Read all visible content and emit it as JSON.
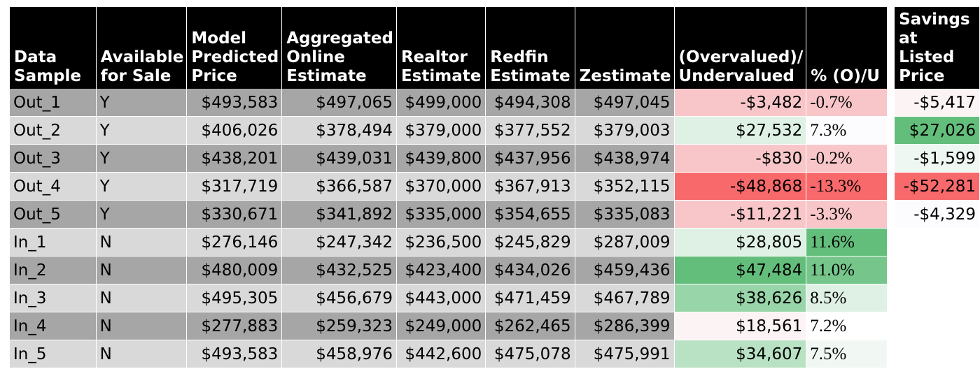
{
  "table": {
    "headers": {
      "data_sample": [
        "Data",
        "Sample"
      ],
      "available": [
        "Available",
        "for Sale"
      ],
      "model": [
        "Model",
        "Predicted",
        "Price"
      ],
      "aggregated": [
        "Aggregated",
        "Online",
        "Estimate"
      ],
      "realtor": [
        "Realtor",
        "Estimate"
      ],
      "redfin": [
        "Redfin",
        "Estimate"
      ],
      "zestimate": [
        "Zestimate"
      ],
      "over_under": [
        "(Overvalued)/",
        "Undervalued"
      ],
      "pct": [
        "% (O)/U"
      ],
      "savings": [
        "Savings",
        "at Listed",
        "Price"
      ]
    },
    "rows": [
      {
        "sample": "Out_1",
        "available": "Y",
        "model": "$493,583",
        "aggregated": "$497,065",
        "realtor": "$499,000",
        "redfin": "$494,308",
        "zestimate": "$497,045",
        "over_under": "-$3,482",
        "pct": "-0.7%",
        "savings": "-$5,417",
        "ou_color": "#f8c6c9",
        "pct_color": "#f8c6c9",
        "sav_color": "#fcf3f4"
      },
      {
        "sample": "Out_2",
        "available": "Y",
        "model": "$406,026",
        "aggregated": "$378,494",
        "realtor": "$379,000",
        "redfin": "$377,552",
        "zestimate": "$379,003",
        "over_under": "$27,532",
        "pct": "7.3%",
        "savings": "$27,026",
        "ou_color": "#def1e4",
        "pct_color": "#fcfcff",
        "sav_color": "#63be7b"
      },
      {
        "sample": "Out_3",
        "available": "Y",
        "model": "$438,201",
        "aggregated": "$439,031",
        "realtor": "$439,800",
        "redfin": "$437,956",
        "zestimate": "$438,974",
        "over_under": "-$830",
        "pct": "-0.2%",
        "savings": "-$1,599",
        "ou_color": "#f8c6c9",
        "pct_color": "#f8c6c9",
        "sav_color": "#eef7f1"
      },
      {
        "sample": "Out_4",
        "available": "Y",
        "model": "$317,719",
        "aggregated": "$366,587",
        "realtor": "$370,000",
        "redfin": "$367,913",
        "zestimate": "$352,115",
        "over_under": "-$48,868",
        "pct": "-13.3%",
        "savings": "-$52,281",
        "ou_color": "#f8696b",
        "pct_color": "#f8696b",
        "sav_color": "#f8696b"
      },
      {
        "sample": "Out_5",
        "available": "Y",
        "model": "$330,671",
        "aggregated": "$341,892",
        "realtor": "$335,000",
        "redfin": "$354,655",
        "zestimate": "$335,083",
        "over_under": "-$11,221",
        "pct": "-3.3%",
        "savings": "-$4,329",
        "ou_color": "#f8c6c9",
        "pct_color": "#f8c6c9",
        "sav_color": "#fcfcff"
      },
      {
        "sample": "In_1",
        "available": "N",
        "model": "$276,146",
        "aggregated": "$247,342",
        "realtor": "$236,500",
        "redfin": "$245,829",
        "zestimate": "$287,009",
        "over_under": "$28,805",
        "pct": "11.6%",
        "savings": "",
        "ou_color": "#def1e4",
        "pct_color": "#63be7b",
        "sav_color": ""
      },
      {
        "sample": "In_2",
        "available": "N",
        "model": "$480,009",
        "aggregated": "$432,525",
        "realtor": "$423,400",
        "redfin": "$434,026",
        "zestimate": "$459,436",
        "over_under": "$47,484",
        "pct": "11.0%",
        "savings": "",
        "ou_color": "#63be7b",
        "pct_color": "#76c68b",
        "sav_color": ""
      },
      {
        "sample": "In_3",
        "available": "N",
        "model": "$495,305",
        "aggregated": "$456,679",
        "realtor": "$443,000",
        "redfin": "$471,459",
        "zestimate": "$467,789",
        "over_under": "$38,626",
        "pct": "8.5%",
        "savings": "",
        "ou_color": "#98d5a9",
        "pct_color": "#def1e4",
        "sav_color": ""
      },
      {
        "sample": "In_4",
        "available": "N",
        "model": "$277,883",
        "aggregated": "$259,323",
        "realtor": "$249,000",
        "redfin": "$262,465",
        "zestimate": "$286,399",
        "over_under": "$18,561",
        "pct": "7.2%",
        "savings": "",
        "ou_color": "#fcf3f4",
        "pct_color": "#ffffff",
        "sav_color": ""
      },
      {
        "sample": "In_5",
        "available": "N",
        "model": "$493,583",
        "aggregated": "$458,976",
        "realtor": "$442,600",
        "redfin": "$475,078",
        "zestimate": "$475,991",
        "over_under": "$34,607",
        "pct": "7.5%",
        "savings": "",
        "ou_color": "#b9e1c3",
        "pct_color": "#f1f8f3",
        "sav_color": ""
      }
    ]
  }
}
